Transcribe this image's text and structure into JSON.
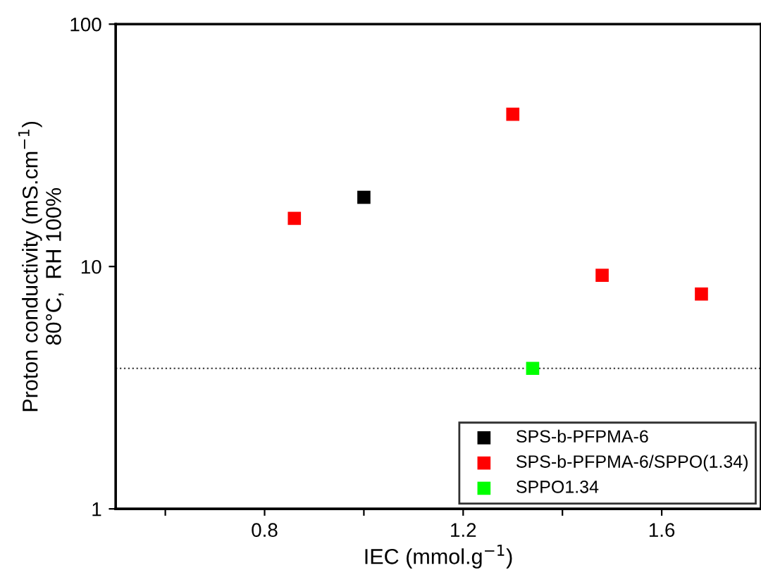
{
  "chart_data": {
    "type": "scatter",
    "xlabel": "IEC (mmol.g$^{−1}$)",
    "ylabel": "Proton conductivity (mS.cm$^{−1}$)\n80°C,  RH 100%",
    "series": [
      {
        "name": "SPS-b-PFPMA-6",
        "color": "#000000",
        "x": [
          1.0
        ],
        "values": [
          19.3
        ]
      },
      {
        "name": "SPS-b-PFPMA-6/SPPO(1.34)",
        "color": "#ff0000",
        "x": [
          0.86,
          1.3,
          1.48,
          1.68
        ],
        "values": [
          15.8,
          42.5,
          9.2,
          7.7
        ]
      },
      {
        "name": "SPPO1.34",
        "color": "#00ff00",
        "x": [
          1.34
        ],
        "values": [
          3.8
        ]
      }
    ],
    "marker": "square",
    "log": "y",
    "xlim": [
      0.5,
      1.8
    ],
    "xticks": [
      {
        "value": 0.6,
        "label": null
      },
      0.8,
      {
        "value": 1.0,
        "label": null
      },
      1.2,
      {
        "value": 1.4,
        "label": null
      },
      1.6
    ],
    "ylim": [
      1,
      100
    ],
    "yticks": [
      1,
      10,
      100
    ],
    "ref_lines": [
      {
        "axis": "y",
        "value": 3.8,
        "line_style": "dotted",
        "color": "#333333"
      }
    ],
    "legend": "bottom right",
    "grid": false
  }
}
